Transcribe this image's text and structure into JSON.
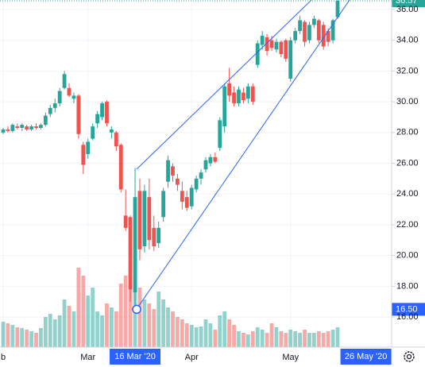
{
  "chart_data": {
    "type": "candlestick",
    "categories": [
      "b",
      null,
      null,
      null,
      null,
      null,
      null,
      null,
      null,
      null,
      null,
      null,
      null,
      null,
      null,
      null,
      null,
      null,
      "Mar",
      null,
      null,
      null,
      null,
      null,
      null,
      null,
      null,
      null,
      null,
      null,
      null,
      null,
      null,
      null,
      null,
      null,
      null,
      null,
      null,
      null,
      "Apr",
      null,
      null,
      null,
      null,
      null,
      null,
      null,
      null,
      null,
      null,
      null,
      null,
      null,
      null,
      null,
      null,
      null,
      null,
      null,
      null,
      "May",
      null,
      null,
      null,
      null,
      null,
      null,
      null,
      null,
      null,
      null
    ],
    "open": [
      28.0,
      28.2,
      28.1,
      28.4,
      28.3,
      28.4,
      28.2,
      28.4,
      28.3,
      28.5,
      29.2,
      29.6,
      29.9,
      30.9,
      30.9,
      30.2,
      30.4,
      27.2,
      26.6,
      27.6,
      28.6,
      29.0,
      30.0,
      28.0,
      28.0,
      27.2,
      22.6,
      22.5,
      17.6,
      24.2,
      20.6,
      23.8,
      21.8,
      20.8,
      22.5,
      24.8,
      25.8,
      25.0,
      24.2,
      23.8,
      23.2,
      24.3,
      25.0,
      25.6,
      26.0,
      26.4,
      27.0,
      28.4,
      31.2,
      30.6,
      29.9,
      30.6,
      30.2,
      31.0,
      32.4,
      33.7,
      34.2,
      34.0,
      33.4,
      33.9,
      34.0,
      31.5,
      34.0,
      34.6,
      35.2,
      34.0,
      35.0,
      35.3,
      35.0,
      34.6,
      34.0,
      35.5
    ],
    "high": [
      28.3,
      28.4,
      28.6,
      28.6,
      28.6,
      28.5,
      28.5,
      28.6,
      28.6,
      29.3,
      29.8,
      30.2,
      30.9,
      32.0,
      31.2,
      30.6,
      30.5,
      27.4,
      27.6,
      28.6,
      29.4,
      30.0,
      30.1,
      28.4,
      28.1,
      27.3,
      24.3,
      22.6,
      25.7,
      25.0,
      24.6,
      25.0,
      22.6,
      22.2,
      24.4,
      26.5,
      26.0,
      25.3,
      24.8,
      24.2,
      24.6,
      25.2,
      25.6,
      26.4,
      26.6,
      26.7,
      29.0,
      31.2,
      32.2,
      31.0,
      31.0,
      30.9,
      31.2,
      31.2,
      34.0,
      34.6,
      34.4,
      34.3,
      34.1,
      34.0,
      34.1,
      34.2,
      34.8,
      35.6,
      35.3,
      35.2,
      35.6,
      35.4,
      35.2,
      34.8,
      35.4,
      36.7
    ],
    "low": [
      27.9,
      28.0,
      28.0,
      28.2,
      28.1,
      28.1,
      28.1,
      28.2,
      28.2,
      28.4,
      29.0,
      29.3,
      29.7,
      30.8,
      30.3,
      29.9,
      27.6,
      25.3,
      26.3,
      27.5,
      28.3,
      28.8,
      28.4,
      27.6,
      26.8,
      24.1,
      21.6,
      17.0,
      16.5,
      19.7,
      20.2,
      20.4,
      20.3,
      20.5,
      22.2,
      24.4,
      24.8,
      24.2,
      23.0,
      22.9,
      23.0,
      24.1,
      24.6,
      25.4,
      25.8,
      26.0,
      26.8,
      28.0,
      30.0,
      29.7,
      29.7,
      29.9,
      29.9,
      29.8,
      32.2,
      33.4,
      33.0,
      33.3,
      33.2,
      32.9,
      32.6,
      31.3,
      33.8,
      34.4,
      33.6,
      33.8,
      34.8,
      33.8,
      33.4,
      33.6,
      33.8,
      35.4
    ],
    "close": [
      28.2,
      28.1,
      28.5,
      28.3,
      28.5,
      28.2,
      28.4,
      28.3,
      28.5,
      29.1,
      29.6,
      29.9,
      30.7,
      31.8,
      30.4,
      30.4,
      27.9,
      25.9,
      27.4,
      28.4,
      29.2,
      29.9,
      28.6,
      28.2,
      27.1,
      24.3,
      21.8,
      17.8,
      23.8,
      20.4,
      24.2,
      21.0,
      20.6,
      21.8,
      24.2,
      26.2,
      25.2,
      24.6,
      23.5,
      23.1,
      24.4,
      25.0,
      25.4,
      26.2,
      26.4,
      26.1,
      28.8,
      31.0,
      30.4,
      29.9,
      30.8,
      30.1,
      31.0,
      30.0,
      33.8,
      34.3,
      33.3,
      33.5,
      33.9,
      33.1,
      32.8,
      34.0,
      34.6,
      35.3,
      33.9,
      35.0,
      35.4,
      34.0,
      33.6,
      33.9,
      35.3,
      36.57
    ],
    "volume": [
      32,
      30,
      28,
      25,
      24,
      22,
      20,
      18,
      24,
      38,
      42,
      35,
      40,
      60,
      52,
      45,
      100,
      90,
      65,
      75,
      45,
      40,
      55,
      50,
      45,
      80,
      90,
      105,
      70,
      75,
      60,
      55,
      48,
      70,
      60,
      50,
      45,
      38,
      35,
      30,
      28,
      25,
      26,
      35,
      30,
      22,
      40,
      45,
      35,
      28,
      20,
      18,
      16,
      20,
      25,
      22,
      18,
      30,
      25,
      20,
      18,
      22,
      20,
      18,
      22,
      18,
      18,
      20,
      18,
      20,
      22,
      25
    ],
    "up_color": "#26a69a",
    "down_color": "#ef5350",
    "ylim": [
      14.04,
      36.62
    ],
    "yticks": [
      {
        "value": 16,
        "label": "16.00"
      },
      {
        "value": 18,
        "label": "18.00"
      },
      {
        "value": 20,
        "label": "20.00"
      },
      {
        "value": 22,
        "label": "22.00"
      },
      {
        "value": 24,
        "label": "24.00"
      },
      {
        "value": 26,
        "label": "26.00"
      },
      {
        "value": 28,
        "label": "28.00"
      },
      {
        "value": 30,
        "label": "30.00"
      },
      {
        "value": 32,
        "label": "32.00"
      },
      {
        "value": 34,
        "label": "34.00"
      },
      {
        "value": 36,
        "label": "36.00"
      }
    ],
    "grid": true,
    "last_price": 36.57,
    "marker_price": {
      "value": 16.5,
      "label": "16.50",
      "color": "#2962ff"
    },
    "markers": [
      {
        "index": 28,
        "label": "16 Mar '20"
      },
      {
        "index": 77,
        "label": "26 May '20"
      }
    ]
  }
}
